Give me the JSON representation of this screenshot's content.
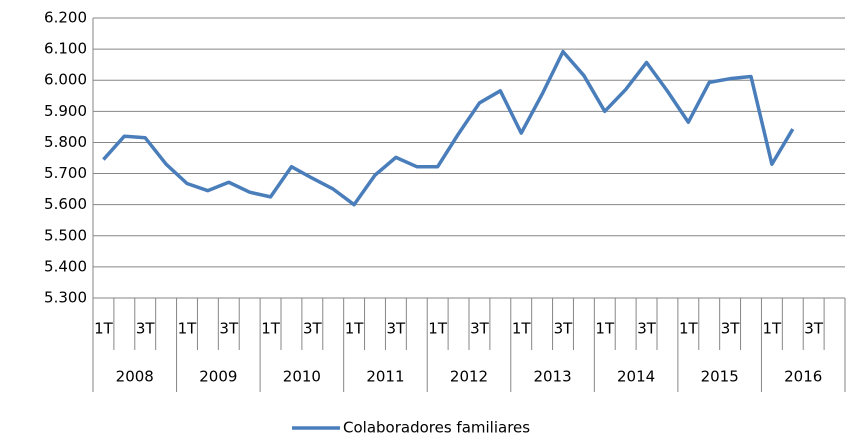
{
  "chart_data": {
    "type": "line",
    "categories": [
      "1T",
      null,
      "3T",
      null,
      "1T",
      null,
      "3T",
      null,
      "1T",
      null,
      "3T",
      null,
      "1T",
      null,
      "3T",
      null,
      "1T",
      null,
      "3T",
      null,
      "1T",
      null,
      "3T",
      null,
      "1T",
      null,
      "3T",
      null,
      "1T",
      null,
      "3T",
      null,
      "1T",
      null,
      "3T",
      null
    ],
    "year_labels": [
      "2008",
      "2009",
      "2010",
      "2011",
      "2012",
      "2013",
      "2014",
      "2015",
      "2016"
    ],
    "series": [
      {
        "name": "Colaboradores familiares",
        "color": "#4a7ebb",
        "values": [
          5745,
          5820,
          5815,
          5730,
          5668,
          5645,
          5672,
          5640,
          5625,
          5722,
          5685,
          5650,
          5600,
          5695,
          5752,
          5722,
          5722,
          5828,
          5927,
          5966,
          5830,
          5955,
          6092,
          6015,
          5900,
          5970,
          6057,
          5965,
          5865,
          5993,
          6005,
          6012,
          5730,
          5843,
          null,
          null
        ]
      }
    ],
    "ylim": [
      5300,
      6200
    ],
    "yticks": [
      {
        "value": 5300,
        "label": "5.300"
      },
      {
        "value": 5400,
        "label": "5.400"
      },
      {
        "value": 5500,
        "label": "5.500"
      },
      {
        "value": 5600,
        "label": "5.600"
      },
      {
        "value": 5700,
        "label": "5.700"
      },
      {
        "value": 5800,
        "label": "5.800"
      },
      {
        "value": 5900,
        "label": "5.900"
      },
      {
        "value": 6000,
        "label": "6.000"
      },
      {
        "value": 6100,
        "label": "6.100"
      },
      {
        "value": 6200,
        "label": "6.200"
      }
    ],
    "grid": true,
    "legend": "bottom"
  }
}
